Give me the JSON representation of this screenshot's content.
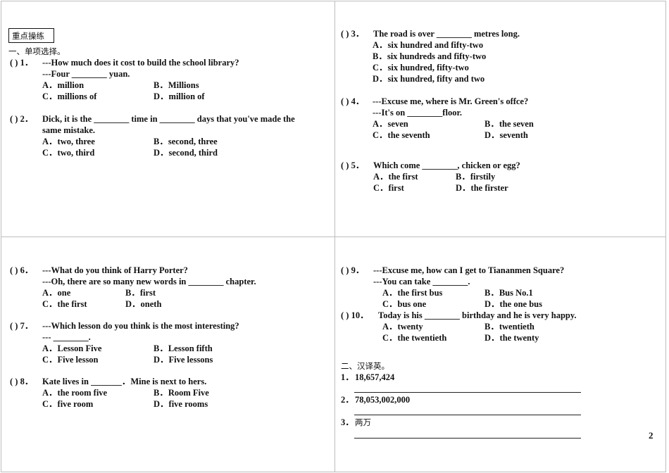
{
  "header_box": "重点操练",
  "section1_title": "一、单项选择。",
  "q1": {
    "paren": "(    ) 1．",
    "line1": "---How much does it cost to build the school library?",
    "line2": "---Four ________ yuan.",
    "A": "A．million",
    "B": "B．Millions",
    "C": "C．millions of",
    "D": "D．million of"
  },
  "q2": {
    "paren": "(    ) 2．",
    "line1": "Dick, it is the ________ time in ________ days that you've made the",
    "line2": "same mistake.",
    "A": "A．two, three",
    "B": "B．second, three",
    "C": "C．two, third",
    "D": "D．second, third"
  },
  "q3": {
    "paren": "(    ) 3．",
    "line1": "The road is over ________ metres long.",
    "A": "A．six hundred and fifty-two",
    "B": "B．six hundreds and fifty-two",
    "C": "C．six hundred, fifty-two",
    "D": "D．six hundred, fifty and two"
  },
  "q4": {
    "paren": "(    ) 4．",
    "line1": "---Excuse me, where is Mr. Green's offce?",
    "line2": "---It's on ________floor.",
    "A": "A．seven",
    "B": "B．the seven",
    "C": "C．the seventh",
    "D": "D．seventh"
  },
  "q5": {
    "paren": "(    ) 5．",
    "line1": "Which come ________, chicken or egg?",
    "A": "A．the first",
    "B": "B．firstily",
    "C": "C．first",
    "D": "D．the firster"
  },
  "q6": {
    "paren": "(    ) 6．",
    "line1": "---What do you think of Harry Porter?",
    "line2": "---Oh, there are so many new words in ________ chapter.",
    "A": "A．one",
    "B": "B．first",
    "C": "C．the first",
    "D": "D．oneth"
  },
  "q7": {
    "paren": "(    ) 7．",
    "line1": "---Which lesson do you think is the most interesting?",
    "line2": "--- ________.",
    "A": "A．Lesson Five",
    "B": "B．Lesson fifth",
    "C": "C．Five lesson",
    "D": "D．Five lessons"
  },
  "q8": {
    "paren": "(    ) 8．",
    "line1": "Kate lives in _______．Mine is next to hers.",
    "A": "A．the room five",
    "B": "B．Room Five",
    "C": "C．five room",
    "D": "D．five rooms"
  },
  "q9": {
    "paren": "(    ) 9．",
    "line1": "---Excuse me, how can I get to Tiananmen Square?",
    "line2": "---You can take ________.",
    "A": "A．the first bus",
    "B": "B．Bus No.1",
    "C": "C．bus one",
    "D": "D．the one bus"
  },
  "q10": {
    "paren": "(    ) 10．",
    "line1": "Today is his ________ birthday and he is very happy.",
    "A": "A．twenty",
    "B": "B．twentieth",
    "C": "C．the twentieth",
    "D": "D．the twenty"
  },
  "section2_title": "二、汉译英。",
  "translate": [
    {
      "num": "1．",
      "text": "18,657,424"
    },
    {
      "num": "2．",
      "text": "78,053,002,000"
    },
    {
      "num": "3．",
      "text": "两万"
    }
  ],
  "page_number": "2"
}
